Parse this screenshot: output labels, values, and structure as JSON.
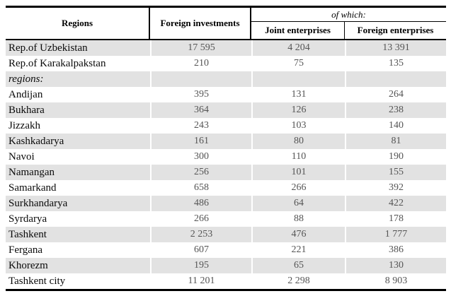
{
  "table": {
    "header": {
      "regions": "Regions",
      "foreign_investments": "Foreign investments",
      "of_which": "of which:",
      "joint_enterprises": "Joint enterprises",
      "foreign_enterprises": "Foreign enterprises"
    },
    "rows": [
      {
        "region": "Rep.of Uzbekistan",
        "foreign_investments": "17 595",
        "joint_enterprises": "4 204",
        "foreign_enterprises": "13 391"
      },
      {
        "region": "Rep.of Karakalpakstan",
        "foreign_investments": "210",
        "joint_enterprises": "75",
        "foreign_enterprises": "135"
      },
      {
        "region": "regions:",
        "foreign_investments": "",
        "joint_enterprises": "",
        "foreign_enterprises": ""
      },
      {
        "region": "Andijan",
        "foreign_investments": "395",
        "joint_enterprises": "131",
        "foreign_enterprises": "264"
      },
      {
        "region": "Bukhara",
        "foreign_investments": "364",
        "joint_enterprises": "126",
        "foreign_enterprises": "238"
      },
      {
        "region": "Jizzakh",
        "foreign_investments": "243",
        "joint_enterprises": "103",
        "foreign_enterprises": "140"
      },
      {
        "region": "Kashkadarya",
        "foreign_investments": "161",
        "joint_enterprises": "80",
        "foreign_enterprises": "81"
      },
      {
        "region": "Navoi",
        "foreign_investments": "300",
        "joint_enterprises": "110",
        "foreign_enterprises": "190"
      },
      {
        "region": "Namangan",
        "foreign_investments": "256",
        "joint_enterprises": "101",
        "foreign_enterprises": "155"
      },
      {
        "region": "Samarkand",
        "foreign_investments": "658",
        "joint_enterprises": "266",
        "foreign_enterprises": "392"
      },
      {
        "region": "Surkhandarya",
        "foreign_investments": "486",
        "joint_enterprises": "64",
        "foreign_enterprises": "422"
      },
      {
        "region": "Syrdarya",
        "foreign_investments": "266",
        "joint_enterprises": "88",
        "foreign_enterprises": "178"
      },
      {
        "region": "Tashkent",
        "foreign_investments": "2 253",
        "joint_enterprises": "476",
        "foreign_enterprises": "1 777"
      },
      {
        "region": "Fergana",
        "foreign_investments": "607",
        "joint_enterprises": "221",
        "foreign_enterprises": "386"
      },
      {
        "region": "Khorezm",
        "foreign_investments": "195",
        "joint_enterprises": "65",
        "foreign_enterprises": "130"
      },
      {
        "region": "Tashkent city",
        "foreign_investments": "11 201",
        "joint_enterprises": "2 298",
        "foreign_enterprises": "8 903"
      }
    ],
    "colors": {
      "row_shade": "#e2e2e2",
      "number_text": "#555555",
      "rule": "#000000"
    }
  }
}
